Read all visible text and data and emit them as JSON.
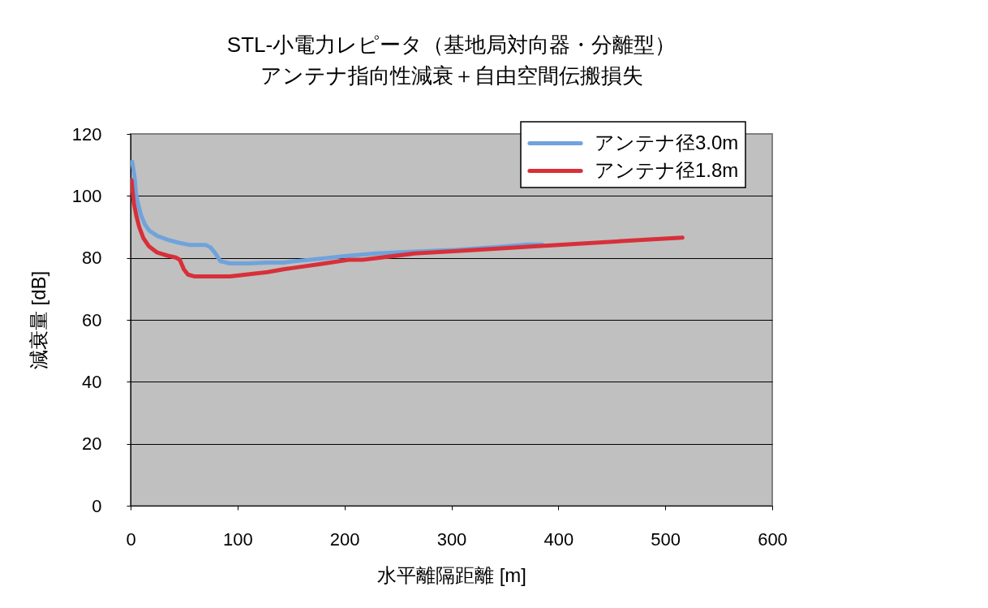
{
  "chart_data": {
    "type": "line",
    "title": "STL-小電力レピータ（基地局対向器・分離型）",
    "subtitle": "アンテナ指向性減衰＋自由空間伝搬損失",
    "xlabel": "水平離隔距離 [m]",
    "ylabel": "減衰量 [dB]",
    "xlim": [
      0,
      600
    ],
    "xticks": [
      0,
      100,
      200,
      300,
      400,
      500,
      600
    ],
    "ylim": [
      0,
      120
    ],
    "yticks": [
      0,
      20,
      40,
      60,
      80,
      100,
      120
    ],
    "grid": "y",
    "legend": "top right",
    "line_style": "solid",
    "series": [
      {
        "name": "アンテナ径3.0m",
        "color": "#6fa3dc",
        "x": [
          1.5,
          3.8,
          5,
          7.3,
          9.9,
          13.7,
          17.5,
          25,
          35,
          45,
          55,
          70,
          75,
          79,
          84,
          93,
          110,
          128,
          143,
          153,
          179,
          204,
          229,
          265,
          305,
          343,
          371,
          385
        ],
        "values": [
          111,
          105.8,
          100.6,
          97.1,
          93.6,
          90.6,
          88.8,
          87.1,
          85.8,
          84.9,
          84.2,
          84.2,
          83.3,
          81.6,
          78.9,
          78.2,
          78.2,
          78.5,
          78.5,
          78.9,
          79.8,
          80.7,
          81.4,
          82,
          82.6,
          83.5,
          84.3,
          84.3
        ]
      },
      {
        "name": "アンテナ径1.8m",
        "color": "#d7303a",
        "x": [
          0.8,
          3,
          5.6,
          8.1,
          11.9,
          17,
          24.5,
          34.7,
          42.3,
          46,
          49.8,
          53.6,
          60,
          93,
          118,
          128,
          143,
          153,
          179,
          204,
          217,
          265,
          305,
          343,
          371,
          432,
          482,
          516
        ],
        "values": [
          105.1,
          97.7,
          93.3,
          89.9,
          86.4,
          83.8,
          81.8,
          80.7,
          80.1,
          79.4,
          76.3,
          74.6,
          74,
          74,
          75,
          75.4,
          76.3,
          76.8,
          78.1,
          79.4,
          79.4,
          81.4,
          82.2,
          83,
          83.6,
          84.8,
          85.9,
          86.5
        ]
      }
    ]
  }
}
